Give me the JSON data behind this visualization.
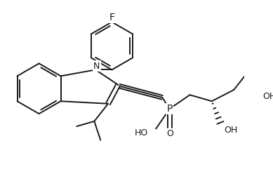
{
  "background": "#ffffff",
  "line_color": "#1a1a1a",
  "line_width": 1.4,
  "figsize": [
    3.89,
    2.58
  ],
  "dpi": 100,
  "xlim": [
    0,
    389
  ],
  "ylim": [
    0,
    258
  ]
}
